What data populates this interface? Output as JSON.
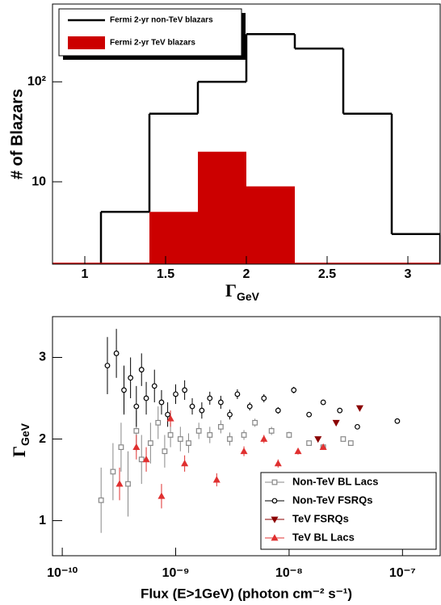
{
  "chart_data": [
    {
      "type": "histogram",
      "x_label": {
        "main": "Γ",
        "sub": "GeV"
      },
      "y_label": "# of Blazars",
      "bins": [
        1.1,
        1.4,
        1.7,
        2.0,
        2.3,
        2.6,
        2.9,
        3.2
      ],
      "series": [
        {
          "name": "Fermi 2-yr non-TeV blazars",
          "color": "#000000",
          "style": "step",
          "values": [
            5,
            48,
            100,
            300,
            215,
            48,
            3
          ]
        },
        {
          "name": "Fermi 2-yr TeV blazars",
          "color": "#cc0000",
          "style": "filled",
          "values": [
            0,
            5,
            20,
            9,
            0,
            0,
            0
          ]
        }
      ],
      "xscale": "linear",
      "yscale": "log",
      "xlim": [
        0.8,
        3.2
      ],
      "ylim": [
        1.5,
        600
      ],
      "xticks": [
        1,
        1.5,
        2,
        2.5,
        3
      ],
      "yticks": [
        10,
        {
          "value": 100,
          "label": "10²"
        }
      ],
      "legend": "upper left"
    },
    {
      "type": "scatter",
      "x_label": "Flux (E>1GeV) (photon cm⁻² s⁻¹)",
      "y_label": {
        "main": "Γ",
        "sub": "GeV"
      },
      "xscale": "log",
      "yscale": "linear",
      "xlim": [
        8.2e-11,
        2.15e-07
      ],
      "ylim": [
        0.57,
        3.5
      ],
      "xticks": [
        {
          "value": 1e-10,
          "label": "10⁻¹⁰"
        },
        {
          "value": 1e-09,
          "label": "10⁻⁹"
        },
        {
          "value": 1e-08,
          "label": "10⁻⁸"
        },
        {
          "value": 1e-07,
          "label": "10⁻⁷"
        }
      ],
      "yticks": [
        1,
        2,
        3
      ],
      "legend": "lower right",
      "series": [
        {
          "name": "Non-TeV BL Lacs",
          "color": "#888888",
          "marker": "square",
          "x": [
            2.2e-10,
            2.8e-10,
            3.3e-10,
            3.8e-10,
            4.5e-10,
            5e-10,
            6e-10,
            7e-10,
            8e-10,
            9e-10,
            1.1e-09,
            1.3e-09,
            1.6e-09,
            2e-09,
            2.5e-09,
            3e-09,
            4e-09,
            5e-09,
            7e-09,
            1e-08,
            1.5e-08,
            2e-08,
            3e-08,
            3.5e-08
          ],
          "values": [
            1.25,
            1.6,
            1.9,
            1.45,
            2.1,
            1.75,
            1.95,
            2.2,
            1.85,
            2.05,
            2.0,
            1.95,
            2.1,
            2.05,
            2.15,
            2.0,
            2.05,
            2.2,
            2.1,
            2.05,
            1.95,
            1.9,
            2.0,
            1.95
          ],
          "yerr": [
            0.4,
            0.35,
            0.3,
            0.4,
            0.25,
            0.3,
            0.25,
            0.2,
            0.2,
            0.15,
            0.15,
            0.12,
            0.1,
            0.1,
            0.08,
            0.08,
            0.06,
            0.05,
            0.05,
            0.04,
            0.03,
            0.03,
            0.02,
            0.02
          ]
        },
        {
          "name": "Non-TeV FSRQs",
          "color": "#000000",
          "marker": "circle",
          "x": [
            2.5e-10,
            3e-10,
            3.5e-10,
            4e-10,
            4.5e-10,
            5e-10,
            5.5e-10,
            6.5e-10,
            7.5e-10,
            8.5e-10,
            1e-09,
            1.2e-09,
            1.4e-09,
            1.7e-09,
            2e-09,
            2.5e-09,
            3e-09,
            3.5e-09,
            4.5e-09,
            6e-09,
            8e-09,
            1.1e-08,
            1.5e-08,
            2e-08,
            2.8e-08,
            4e-08,
            9e-08
          ],
          "values": [
            2.9,
            3.05,
            2.6,
            2.75,
            2.4,
            2.85,
            2.5,
            2.65,
            2.45,
            2.3,
            2.55,
            2.6,
            2.4,
            2.35,
            2.5,
            2.45,
            2.3,
            2.55,
            2.4,
            2.5,
            2.35,
            2.6,
            2.3,
            2.45,
            2.35,
            2.15,
            2.22
          ],
          "yerr": [
            0.35,
            0.3,
            0.3,
            0.25,
            0.25,
            0.2,
            0.2,
            0.2,
            0.15,
            0.15,
            0.12,
            0.12,
            0.1,
            0.1,
            0.08,
            0.08,
            0.06,
            0.06,
            0.05,
            0.05,
            0.04,
            0.04,
            0.03,
            0.03,
            0.02,
            0.02,
            0.02
          ]
        },
        {
          "name": "TeV FSRQs",
          "color": "#8b0000",
          "marker": "triangle-down",
          "x": [
            1.8e-08,
            2.6e-08,
            4.2e-08
          ],
          "values": [
            2.0,
            2.2,
            2.38
          ],
          "yerr": [
            0.03,
            0.03,
            0.02
          ]
        },
        {
          "name": "TeV BL Lacs",
          "color": "#e03030",
          "marker": "triangle",
          "x": [
            3.2e-10,
            4.5e-10,
            5.5e-10,
            7.5e-10,
            9e-10,
            1.2e-09,
            2.3e-09,
            4e-09,
            6e-09,
            8e-09,
            1.2e-08,
            2e-08
          ],
          "values": [
            1.45,
            1.9,
            1.75,
            1.3,
            2.25,
            1.7,
            1.5,
            1.85,
            2.0,
            1.7,
            1.85,
            1.9
          ],
          "yerr": [
            0.2,
            0.15,
            0.15,
            0.15,
            0.1,
            0.1,
            0.08,
            0.06,
            0.05,
            0.05,
            0.04,
            0.03
          ]
        }
      ]
    }
  ]
}
